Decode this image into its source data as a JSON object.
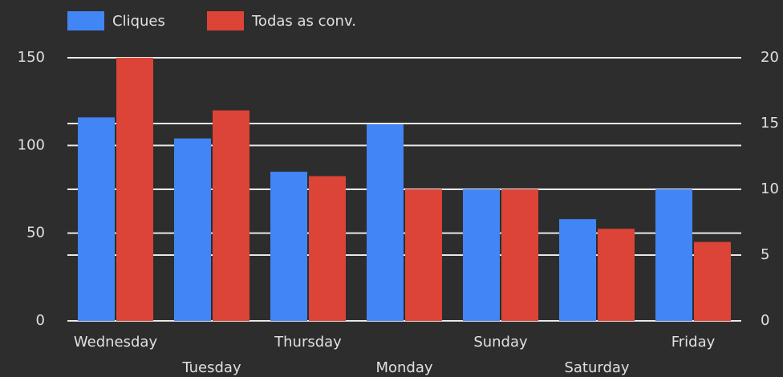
{
  "chart_data": {
    "type": "bar",
    "categories": [
      "Wednesday",
      "Tuesday",
      "Thursday",
      "Monday",
      "Sunday",
      "Saturday",
      "Friday"
    ],
    "series": [
      {
        "name": "Cliques",
        "color": "#4285f4",
        "values": [
          116,
          104,
          85,
          112,
          75,
          58,
          75
        ]
      },
      {
        "name": "Todas as conv.",
        "color": "#db4437",
        "axis": "y2",
        "values": [
          20,
          16,
          11,
          10,
          10,
          7,
          6
        ]
      }
    ],
    "ylim": [
      0,
      150
    ],
    "yticks": [
      0,
      50,
      100,
      150
    ],
    "y2lim": [
      0,
      20
    ],
    "y2ticks": [
      0,
      5,
      10,
      15,
      20
    ],
    "grid": true,
    "legend": "top"
  }
}
